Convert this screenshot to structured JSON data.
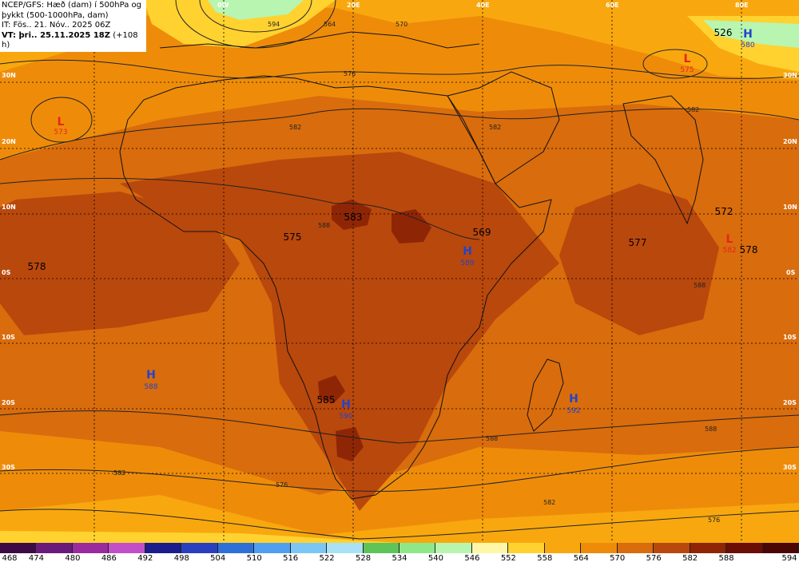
{
  "header": {
    "line1": "NCEP/GFS: Hæð (dam) í 500hPa og",
    "line2": "þykkt (500-1000hPa, dam)",
    "line3": "IT: Fös.. 21. Nóv.. 2025 06Z",
    "line4_bold": "VT: þri.. 25.11.2025 18Z",
    "line4_rest": " (+108 h)"
  },
  "lon_labels": [
    "0W",
    "20E",
    "40E",
    "60E",
    "80E"
  ],
  "lat_labels": [
    "30N",
    "20N",
    "10N",
    "0S",
    "10S",
    "20S",
    "30S"
  ],
  "systems": [
    {
      "type": "L",
      "value": "573"
    },
    {
      "type": "H",
      "value": "588"
    },
    {
      "type": "H",
      "value": "589"
    },
    {
      "type": "H",
      "value": "590"
    },
    {
      "type": "H",
      "value": "592"
    },
    {
      "type": "L",
      "value": "575"
    },
    {
      "type": "H",
      "value": "580"
    },
    {
      "type": "L",
      "value": "582"
    }
  ],
  "thickness_labels": [
    "578",
    "575",
    "583",
    "569",
    "577",
    "572",
    "578",
    "585",
    "526"
  ],
  "contour_labels": [
    "594",
    "564",
    "570",
    "576",
    "582",
    "588",
    "582",
    "582",
    "588",
    "576",
    "582",
    "588",
    "588",
    "582",
    "576"
  ],
  "legend": {
    "values": [
      "468",
      "474",
      "480",
      "486",
      "492",
      "498",
      "504",
      "510",
      "516",
      "522",
      "528",
      "534",
      "540",
      "546",
      "552",
      "558",
      "564",
      "570",
      "576",
      "582",
      "588",
      "594"
    ],
    "colors": [
      "#3d0a45",
      "#6a1a7a",
      "#9a2a9e",
      "#c24fc9",
      "#1c1c8c",
      "#2a3fc0",
      "#2f6fd8",
      "#4f9ff0",
      "#7cc6f5",
      "#a9e1f7",
      "#5ec45a",
      "#8ee88a",
      "#b8f5b0",
      "#fff7a8",
      "#ffd230",
      "#f8a80e",
      "#ee8c0a",
      "#d96c0c",
      "#b9480c",
      "#8e2606",
      "#6a0e06",
      "#4a0505"
    ]
  }
}
